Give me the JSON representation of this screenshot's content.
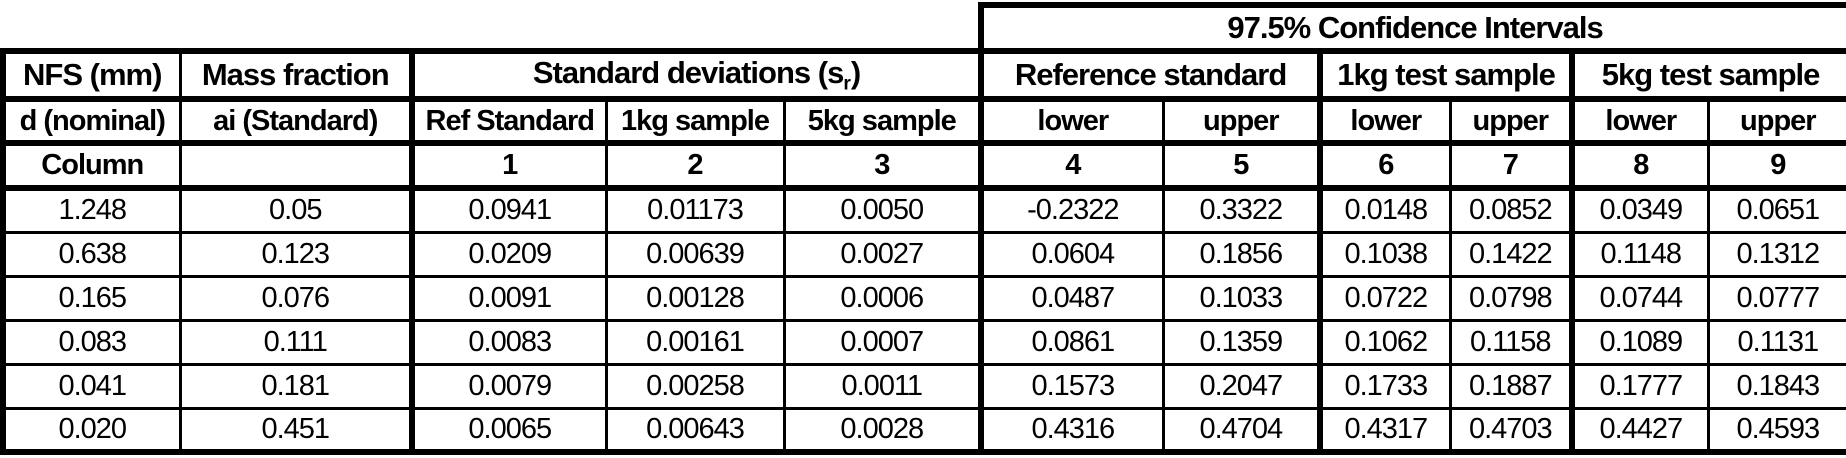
{
  "page": {
    "background": "#ffffff",
    "line_color": "#000000"
  },
  "table": {
    "ci_title": "97.5% Confidence Intervals",
    "groups": {
      "nfs": "NFS (mm)",
      "mass_fraction": "Mass fraction",
      "std_dev_prefix": "Standard deviations (s",
      "std_dev_sub": "r",
      "std_dev_suffix": ")",
      "reference_standard": "Reference standard",
      "test_1kg": "1kg test sample",
      "test_5kg": "5kg test sample"
    },
    "subheaders": {
      "nfs": "d (nominal)",
      "mass_fraction": "ai (Standard)",
      "ref_standard_sd": "Ref Standard",
      "sample_1kg_sd": "1kg sample",
      "sample_5kg_sd": "5kg sample",
      "lower": "lower",
      "upper": "upper"
    },
    "column_row": {
      "label": "Column",
      "blank": "",
      "numbers": [
        "1",
        "2",
        "3",
        "4",
        "5",
        "6",
        "7",
        "8",
        "9"
      ]
    },
    "rows": [
      [
        "1.248",
        "0.05",
        "0.0941",
        "0.01173",
        "0.0050",
        "-0.2322",
        "0.3322",
        "0.0148",
        "0.0852",
        "0.0349",
        "0.0651"
      ],
      [
        "0.638",
        "0.123",
        "0.0209",
        "0.00639",
        "0.0027",
        "0.0604",
        "0.1856",
        "0.1038",
        "0.1422",
        "0.1148",
        "0.1312"
      ],
      [
        "0.165",
        "0.076",
        "0.0091",
        "0.00128",
        "0.0006",
        "0.0487",
        "0.1033",
        "0.0722",
        "0.0798",
        "0.0744",
        "0.0777"
      ],
      [
        "0.083",
        "0.111",
        "0.0083",
        "0.00161",
        "0.0007",
        "0.0861",
        "0.1359",
        "0.1062",
        "0.1158",
        "0.1089",
        "0.1131"
      ],
      [
        "0.041",
        "0.181",
        "0.0079",
        "0.00258",
        "0.0011",
        "0.1573",
        "0.2047",
        "0.1733",
        "0.1887",
        "0.1777",
        "0.1843"
      ],
      [
        "0.020",
        "0.451",
        "0.0065",
        "0.00643",
        "0.0028",
        "0.4316",
        "0.4704",
        "0.4317",
        "0.4703",
        "0.4427",
        "0.4593"
      ]
    ]
  }
}
